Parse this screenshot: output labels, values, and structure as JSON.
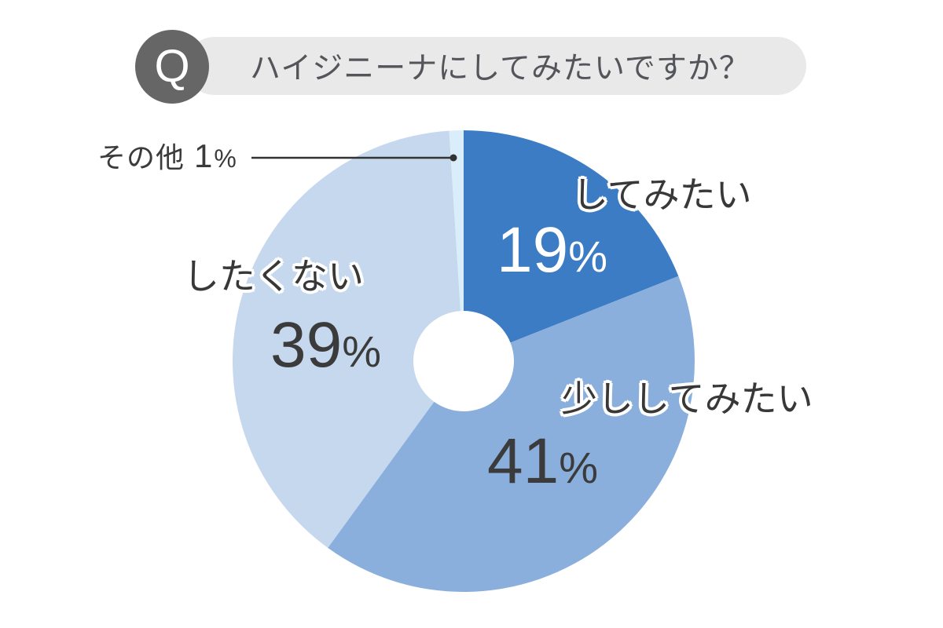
{
  "header": {
    "badge": "Q",
    "question": "ハイジニーナにしてみたいですか？"
  },
  "chart_data": {
    "type": "pie",
    "title": "ハイジニーナにしてみたいですか？",
    "donut": true,
    "hole_ratio": 0.22,
    "unit": "%",
    "start_angle_deg": 0,
    "direction": "clockwise",
    "legend": "none",
    "segments": [
      {
        "label": "してみたい",
        "value": 19,
        "color": "#3c7cc4",
        "value_text_color": "#ffffff"
      },
      {
        "label": "少ししてみたい",
        "value": 41,
        "color": "#8aafdc",
        "value_text_color": "#3b3b3b"
      },
      {
        "label": "したくない",
        "value": 39,
        "color": "#c5d8ed",
        "value_text_color": "#3b3b3b"
      },
      {
        "label": "その他",
        "value": 1,
        "color": "#d9eefa",
        "callout": true
      }
    ],
    "colors": {
      "label_text": "#383838",
      "callout_line": "#333333"
    }
  }
}
